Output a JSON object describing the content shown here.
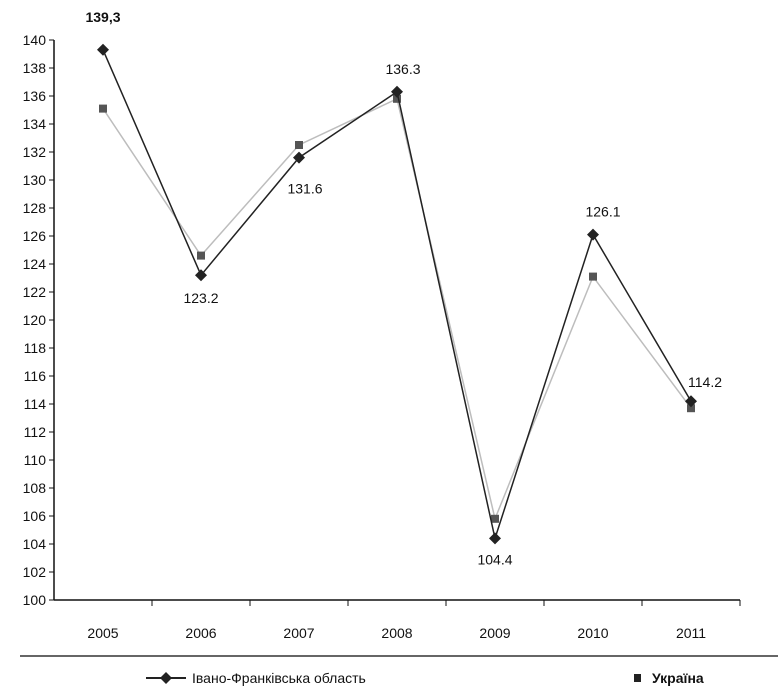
{
  "chart_data": {
    "type": "line",
    "categories": [
      "2005",
      "2006",
      "2007",
      "2008",
      "2009",
      "2010",
      "2011"
    ],
    "ylim": [
      100,
      140
    ],
    "yticks": [
      "100",
      "102",
      "104",
      "106",
      "108",
      "110",
      "112",
      "114",
      "116",
      "118",
      "120",
      "122",
      "124",
      "126",
      "128",
      "130",
      "132",
      "134",
      "136",
      "138",
      "140"
    ],
    "first_point_label": "139,3",
    "series": [
      {
        "name": "Івано-Франківська область",
        "values": [
          139.3,
          123.2,
          131.6,
          136.3,
          104.4,
          126.1,
          114.2
        ],
        "labels": [
          "139,3",
          "123.2",
          "131.6",
          "136.3",
          "104.4",
          "126.1",
          "114.2"
        ],
        "color": "#222222",
        "marker": "diamond"
      },
      {
        "name": "Україна",
        "values": [
          135.1,
          124.6,
          132.5,
          135.8,
          105.8,
          123.1,
          113.7
        ],
        "color": "#bdbdbd",
        "marker": "square"
      }
    ],
    "legend_position": "bottom",
    "grid": false
  }
}
